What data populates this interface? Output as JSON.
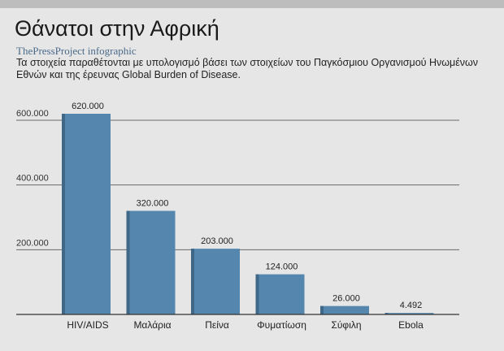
{
  "header": {
    "title": "Θάνατοι στην Αφρική",
    "subtitle": "ThePressProject infographic",
    "description": "Τα στοιχεία παραθέτονται με υπολογισμό βάσει των στοιχείων του Παγκόσμιου Οργανισμού Ηνωμένων Εθνών και της έρευνας Global Burden of Disease."
  },
  "colors": {
    "bar": "#5586ad",
    "bar_shadow": "#3f6787",
    "grid": "#6a6a6a",
    "baseline": "#333333"
  },
  "chart_data": {
    "type": "bar",
    "categories": [
      "HIV/AIDS",
      "Μαλάρια",
      "Πείνα",
      "Φυματίωση",
      "Σύφιλη",
      "Ebola"
    ],
    "values": [
      620000,
      320000,
      203000,
      124000,
      26000,
      4492
    ],
    "value_labels": [
      "620.000",
      "320.000",
      "203.000",
      "124.000",
      "26.000",
      "4.492"
    ],
    "yticks": [
      200000,
      400000,
      600000
    ],
    "ytick_labels": [
      "200.000",
      "400.000",
      "600.000"
    ],
    "ylim": [
      0,
      620000
    ],
    "grid": true,
    "legend": "none"
  }
}
